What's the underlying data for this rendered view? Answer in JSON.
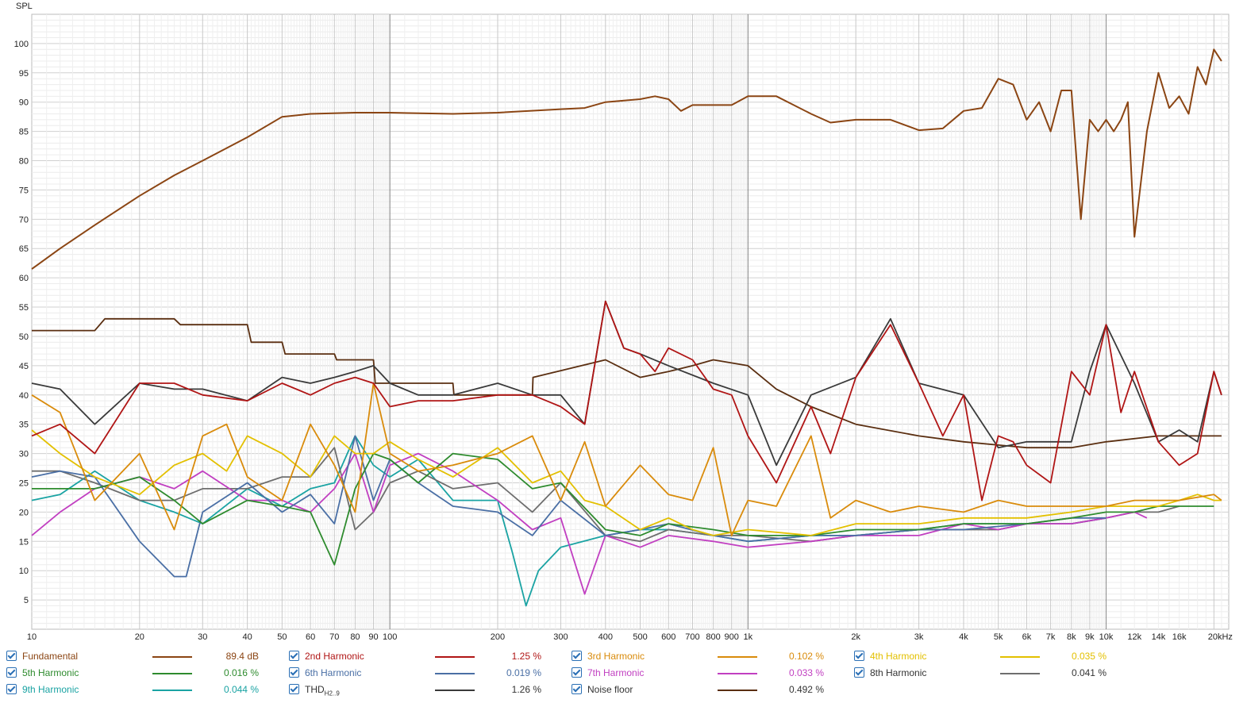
{
  "chart_data": {
    "type": "line",
    "ylabel": "SPL",
    "xscale": "log",
    "xlim": [
      10,
      22000
    ],
    "ylim": [
      0,
      105
    ],
    "y_ticks": [
      5,
      10,
      15,
      20,
      25,
      30,
      35,
      40,
      45,
      50,
      55,
      60,
      65,
      70,
      75,
      80,
      85,
      90,
      95,
      100
    ],
    "x_ticks": [
      {
        "v": 10,
        "l": "10"
      },
      {
        "v": 20,
        "l": "20"
      },
      {
        "v": 30,
        "l": "30"
      },
      {
        "v": 40,
        "l": "40"
      },
      {
        "v": 50,
        "l": "50"
      },
      {
        "v": 60,
        "l": "60"
      },
      {
        "v": 70,
        "l": "70"
      },
      {
        "v": 80,
        "l": "80"
      },
      {
        "v": 90,
        "l": "90"
      },
      {
        "v": 100,
        "l": "100"
      },
      {
        "v": 200,
        "l": "200"
      },
      {
        "v": 300,
        "l": "300"
      },
      {
        "v": 400,
        "l": "400"
      },
      {
        "v": 500,
        "l": "500"
      },
      {
        "v": 600,
        "l": "600"
      },
      {
        "v": 700,
        "l": "700"
      },
      {
        "v": 800,
        "l": "800"
      },
      {
        "v": 900,
        "l": "900"
      },
      {
        "v": 1000,
        "l": "1k"
      },
      {
        "v": 2000,
        "l": "2k"
      },
      {
        "v": 3000,
        "l": "3k"
      },
      {
        "v": 4000,
        "l": "4k"
      },
      {
        "v": 5000,
        "l": "5k"
      },
      {
        "v": 6000,
        "l": "6k"
      },
      {
        "v": 7000,
        "l": "7k"
      },
      {
        "v": 8000,
        "l": "8k"
      },
      {
        "v": 9000,
        "l": "9k"
      },
      {
        "v": 10000,
        "l": "10k"
      },
      {
        "v": 12000,
        "l": "12k"
      },
      {
        "v": 14000,
        "l": "14k"
      },
      {
        "v": 16000,
        "l": "16k"
      },
      {
        "v": 20000,
        "l": "20kHz"
      }
    ],
    "grid": true,
    "series": [
      {
        "name": "Fundamental",
        "color": "#8B4513",
        "value": "89.4 dB",
        "x": [
          10,
          12,
          15,
          20,
          25,
          30,
          40,
          50,
          60,
          80,
          100,
          150,
          200,
          300,
          350,
          400,
          500,
          550,
          600,
          650,
          700,
          800,
          900,
          1000,
          1200,
          1500,
          1700,
          2000,
          2500,
          3000,
          3500,
          4000,
          4500,
          5000,
          5500,
          6000,
          6500,
          7000,
          7500,
          8000,
          8500,
          9000,
          9500,
          10000,
          10500,
          11000,
          11500,
          12000,
          13000,
          14000,
          15000,
          16000,
          17000,
          18000,
          19000,
          20000,
          21000
        ],
        "y": [
          61.5,
          65,
          69,
          74,
          77.5,
          80,
          84,
          87.5,
          88,
          88.2,
          88.2,
          88,
          88.2,
          88.8,
          89,
          90,
          90.5,
          91,
          90.5,
          88.5,
          89.5,
          89.5,
          89.5,
          91,
          91,
          88,
          86.5,
          87,
          87,
          85.2,
          85.5,
          88.5,
          89,
          94,
          93,
          87,
          90,
          85,
          92,
          92,
          70,
          87,
          85,
          87,
          85,
          87,
          90,
          67,
          85,
          95,
          89,
          91,
          88,
          96,
          93,
          99,
          97
        ]
      },
      {
        "name": "2nd Harmonic",
        "color": "#B01515",
        "value": "1.25 %",
        "x": [
          10,
          12,
          15,
          20,
          25,
          30,
          40,
          50,
          60,
          70,
          80,
          90,
          100,
          120,
          150,
          200,
          250,
          300,
          350,
          400,
          450,
          500,
          550,
          600,
          700,
          800,
          900,
          1000,
          1200,
          1500,
          1700,
          2000,
          2500,
          3000,
          3500,
          4000,
          4500,
          5000,
          5500,
          6000,
          7000,
          8000,
          9000,
          10000,
          11000,
          12000,
          14000,
          16000,
          18000,
          20000,
          21000
        ],
        "y": [
          33,
          35,
          30,
          42,
          42,
          40,
          39,
          42,
          40,
          42,
          43,
          42,
          38,
          39,
          39,
          40,
          40,
          38,
          35,
          56,
          48,
          47,
          44,
          48,
          46,
          41,
          40,
          33,
          25,
          38,
          30,
          43,
          52,
          42,
          33,
          40,
          22,
          33,
          32,
          28,
          25,
          44,
          40,
          52,
          37,
          44,
          32,
          28,
          30,
          44,
          40
        ]
      },
      {
        "name": "3rd Harmonic",
        "color": "#D98B0B",
        "value": "0.102 %",
        "x": [
          10,
          12,
          15,
          20,
          25,
          30,
          35,
          40,
          50,
          60,
          70,
          80,
          90,
          100,
          120,
          150,
          200,
          250,
          300,
          350,
          400,
          500,
          600,
          700,
          800,
          900,
          1000,
          1200,
          1500,
          1700,
          2000,
          2500,
          3000,
          4000,
          5000,
          6000,
          8000,
          10000,
          12000,
          16000,
          20000,
          21000
        ],
        "y": [
          40,
          37,
          22,
          30,
          17,
          33,
          35,
          26,
          22,
          35,
          28,
          20,
          42,
          30,
          27,
          28,
          30,
          33,
          22,
          32,
          21,
          28,
          23,
          22,
          31,
          16,
          22,
          21,
          33,
          19,
          22,
          20,
          21,
          20,
          22,
          21,
          21,
          21,
          22,
          22,
          23,
          22
        ]
      },
      {
        "name": "4th Harmonic",
        "color": "#E3C000",
        "value": "0.035 %",
        "x": [
          10,
          12,
          15,
          20,
          25,
          30,
          35,
          40,
          50,
          60,
          70,
          80,
          90,
          100,
          120,
          150,
          200,
          250,
          300,
          350,
          400,
          500,
          600,
          700,
          800,
          1000,
          1500,
          2000,
          3000,
          4000,
          5000,
          6000,
          8000,
          10000,
          12000,
          14000,
          16000,
          18000,
          20000,
          21000
        ],
        "y": [
          34,
          30,
          26,
          23,
          28,
          30,
          27,
          33,
          30,
          26,
          33,
          30,
          30,
          32,
          29,
          26,
          31,
          25,
          27,
          22,
          21,
          17,
          19,
          17,
          16,
          17,
          16,
          18,
          18,
          19,
          19,
          19,
          20,
          21,
          21,
          21,
          22,
          23,
          22,
          22
        ]
      },
      {
        "name": "5th Harmonic",
        "color": "#2E8B2E",
        "value": "0.016 %",
        "x": [
          10,
          15,
          20,
          25,
          30,
          40,
          50,
          60,
          70,
          80,
          90,
          100,
          120,
          150,
          200,
          250,
          300,
          400,
          500,
          600,
          800,
          1000,
          1500,
          2000,
          3000,
          4000,
          5000,
          6000,
          8000,
          10000,
          12000,
          14000,
          16000,
          18000,
          20000
        ],
        "y": [
          24,
          24,
          26,
          22,
          18,
          22,
          21,
          20,
          11,
          24,
          30,
          29,
          25,
          30,
          29,
          24,
          25,
          17,
          16,
          18,
          17,
          16,
          16,
          17,
          17,
          18,
          18,
          18,
          19,
          20,
          20,
          21,
          21,
          21,
          21
        ]
      },
      {
        "name": "6th Harmonic",
        "color": "#4A6FA5",
        "value": "0.019 %",
        "x": [
          10,
          12,
          15,
          20,
          25,
          27,
          30,
          40,
          50,
          60,
          70,
          80,
          90,
          100,
          120,
          150,
          200,
          250,
          300,
          400,
          500,
          600,
          800,
          1000,
          1500,
          2000,
          3000,
          4000,
          6000,
          8000,
          10000
        ],
        "y": [
          26,
          27,
          26,
          15,
          9,
          9,
          20,
          25,
          20,
          23,
          18,
          33,
          22,
          29,
          25,
          21,
          20,
          16,
          22,
          16,
          17,
          18,
          16,
          15,
          16,
          16,
          17,
          17,
          18,
          19,
          19
        ]
      },
      {
        "name": "7th Harmonic",
        "color": "#C13FC1",
        "value": "0.033 %",
        "x": [
          10,
          12,
          15,
          20,
          25,
          30,
          40,
          50,
          60,
          70,
          80,
          90,
          100,
          120,
          150,
          200,
          250,
          300,
          350,
          400,
          500,
          600,
          800,
          1000,
          1500,
          2000,
          3000,
          4000,
          5000,
          6000,
          8000,
          10000,
          12000,
          13000
        ],
        "y": [
          16,
          20,
          24,
          26,
          24,
          27,
          22,
          22,
          20,
          24,
          30,
          20,
          28,
          30,
          27,
          22,
          17,
          19,
          6,
          16,
          14,
          16,
          15,
          14,
          15,
          16,
          16,
          18,
          17,
          18,
          18,
          19,
          20,
          19
        ]
      },
      {
        "name": "8th Harmonic",
        "color": "#6E6E6E",
        "value": "0.041 %",
        "x": [
          10,
          12,
          15,
          20,
          25,
          30,
          40,
          50,
          60,
          70,
          80,
          90,
          100,
          120,
          150,
          200,
          250,
          300,
          400,
          500,
          600,
          800,
          1000,
          1500,
          2000,
          3000,
          4000,
          5000,
          6000,
          8000,
          10000,
          12000,
          14000,
          16000
        ],
        "y": [
          27,
          27,
          25,
          22,
          22,
          24,
          24,
          26,
          26,
          31,
          17,
          20,
          25,
          27,
          24,
          25,
          20,
          25,
          16,
          15,
          17,
          16,
          16,
          15,
          16,
          17,
          17,
          17,
          18,
          18,
          19,
          20,
          20,
          21
        ]
      },
      {
        "name": "9th Harmonic",
        "color": "#1AA3A3",
        "value": "0.044 %",
        "x": [
          10,
          12,
          15,
          20,
          25,
          30,
          40,
          50,
          60,
          70,
          80,
          90,
          100,
          120,
          150,
          200,
          220,
          240,
          260,
          300,
          400,
          500,
          600,
          800,
          1000,
          1500,
          2000,
          3000,
          4000,
          6000,
          8000,
          10000
        ],
        "y": [
          22,
          23,
          27,
          22,
          20,
          18,
          24,
          21,
          24,
          25,
          33,
          28,
          26,
          29,
          22,
          22,
          13,
          4,
          10,
          14,
          16,
          17,
          17,
          16,
          15,
          16,
          16,
          17,
          18,
          18,
          18,
          19
        ]
      },
      {
        "name": "THD",
        "sub": "H2..9",
        "color": "#3A3A3A",
        "value": "1.26 %",
        "x": [
          10,
          12,
          15,
          20,
          25,
          30,
          40,
          50,
          60,
          70,
          80,
          90,
          100,
          120,
          150,
          200,
          250,
          300,
          350,
          400,
          450,
          500,
          600,
          800,
          1000,
          1200,
          1500,
          2000,
          2500,
          3000,
          4000,
          5000,
          6000,
          8000,
          9000,
          10000,
          12000,
          14000,
          16000,
          18000,
          20000,
          21000
        ],
        "y": [
          42,
          41,
          35,
          42,
          41,
          41,
          39,
          43,
          42,
          43,
          44,
          45,
          42,
          40,
          40,
          42,
          40,
          40,
          35,
          56,
          48,
          47,
          45,
          42,
          40,
          28,
          40,
          43,
          53,
          42,
          40,
          31,
          32,
          32,
          44,
          52,
          42,
          32,
          34,
          32,
          44,
          40
        ]
      },
      {
        "name": "Noise floor",
        "color": "#5A2E10",
        "value": "0.492 %",
        "x": [
          10,
          15,
          16,
          25,
          26,
          40,
          41,
          50,
          51,
          70,
          71,
          90,
          91,
          150,
          151,
          250,
          251,
          400,
          500,
          600,
          700,
          800,
          1000,
          1200,
          1500,
          2000,
          3000,
          4000,
          6000,
          8000,
          10000,
          14000,
          20000,
          21000
        ],
        "y": [
          51,
          51,
          53,
          53,
          52,
          52,
          49,
          49,
          47,
          47,
          46,
          46,
          42,
          42,
          40,
          40,
          43,
          46,
          43,
          44,
          45,
          46,
          45,
          41,
          38,
          35,
          33,
          32,
          31,
          31,
          32,
          33,
          33,
          33
        ]
      }
    ]
  },
  "legend": {
    "rows": [
      [
        {
          "label": "Fundamental",
          "value": "89.4 dB",
          "color": "#8B4513"
        },
        {
          "label": "2nd Harmonic",
          "value": "1.25 %",
          "color": "#B01515"
        },
        {
          "label": "3rd Harmonic",
          "value": "0.102 %",
          "color": "#D98B0B"
        },
        {
          "label": "4th Harmonic",
          "value": "0.035 %",
          "color": "#E3C000"
        }
      ],
      [
        {
          "label": "5th Harmonic",
          "value": "0.016 %",
          "color": "#2E8B2E"
        },
        {
          "label": "6th Harmonic",
          "value": "0.019 %",
          "color": "#4A6FA5"
        },
        {
          "label": "7th Harmonic",
          "value": "0.033 %",
          "color": "#C13FC1"
        },
        {
          "label": "8th Harmonic",
          "value": "0.041 %",
          "color": "#6E6E6E"
        }
      ],
      [
        {
          "label": "9th Harmonic",
          "value": "0.044 %",
          "color": "#1AA3A3"
        },
        {
          "label": "THD",
          "sub": "H2..9",
          "value": "1.26 %",
          "color": "#3A3A3A"
        },
        {
          "label": "Noise floor",
          "value": "0.492 %",
          "color": "#5A2E10"
        }
      ]
    ]
  }
}
